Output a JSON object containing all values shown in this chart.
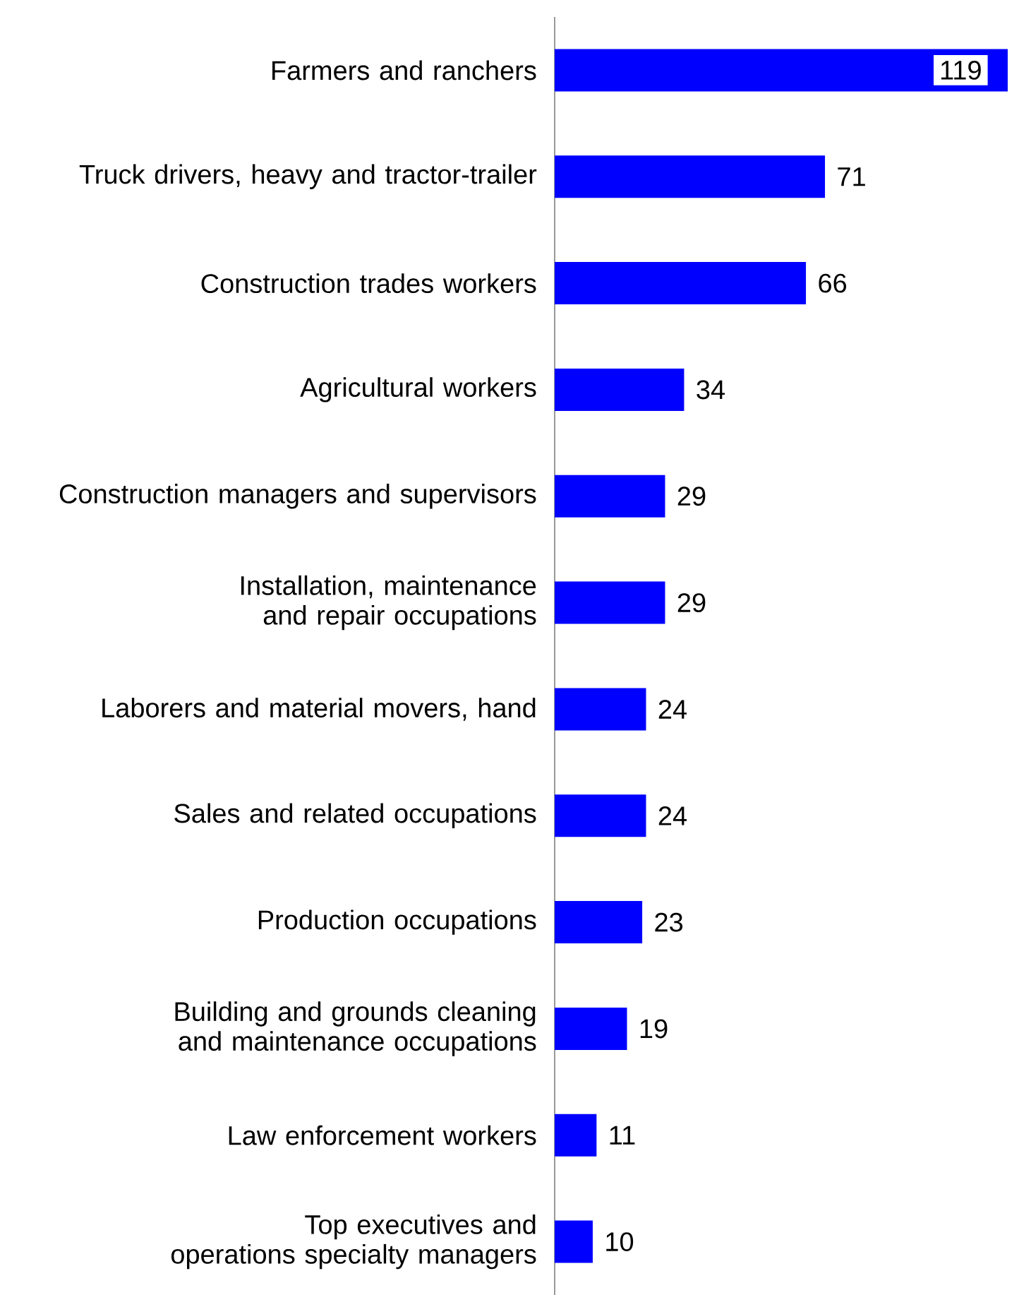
{
  "chart_data": {
    "type": "bar",
    "orientation": "horizontal",
    "color": "#0000ff",
    "categories": [
      "Farmers and ranchers",
      "Truck drivers, heavy and tractor-trailer",
      "Construction trades workers",
      "Agricultural workers",
      "Construction managers and supervisors",
      "Installation, maintenance and repair occupations",
      "Laborers and material movers, hand",
      "Sales and related occupations",
      "Production occupations",
      "Building and grounds cleaning and maintenance occupations",
      "Law enforcement workers",
      "Top executives and operations specialty managers"
    ],
    "values": [
      119,
      71,
      66,
      34,
      29,
      29,
      24,
      24,
      23,
      19,
      11,
      10
    ],
    "value_labels": [
      "119",
      "71",
      "66",
      "34",
      "29",
      "29",
      "24",
      "24",
      "23",
      "19",
      "11",
      "10"
    ]
  }
}
